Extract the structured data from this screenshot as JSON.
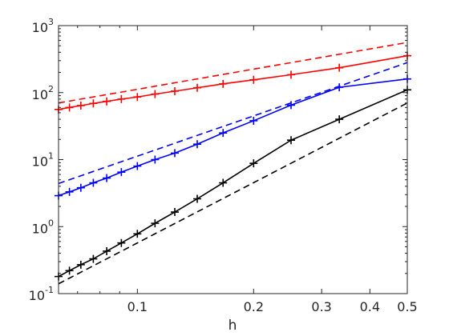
{
  "chart_data": {
    "type": "line",
    "xlabel": "h",
    "ylabel": "",
    "title": "",
    "x_scale": "log",
    "y_scale": "log",
    "xlim": [
      0.0625,
      0.5
    ],
    "ylim": [
      0.1,
      1000
    ],
    "x_ticks": [
      {
        "value": 0.1,
        "label": "0.1"
      },
      {
        "value": 0.2,
        "label": "0.2"
      },
      {
        "value": 0.3,
        "label": "0.3"
      },
      {
        "value": 0.4,
        "label": "0.4"
      },
      {
        "value": 0.5,
        "label": "0.5"
      }
    ],
    "y_ticks": [
      {
        "value": 0.1,
        "base": "10",
        "exp": "-1"
      },
      {
        "value": 1,
        "base": "10",
        "exp": "0"
      },
      {
        "value": 10,
        "base": "10",
        "exp": "1"
      },
      {
        "value": 100,
        "base": "10",
        "exp": "2"
      },
      {
        "value": 1000,
        "base": "10",
        "exp": "3"
      }
    ],
    "grid": false,
    "series": [
      {
        "color": "#ff0000",
        "style": "solid",
        "marker": "+",
        "x": [
          0.5,
          0.3333,
          0.25,
          0.2,
          0.1667,
          0.1429,
          0.125,
          0.1111,
          0.1,
          0.0909,
          0.0833,
          0.0769,
          0.0714,
          0.0667,
          0.0625
        ],
        "y": [
          355,
          235,
          185,
          155,
          135,
          118,
          105,
          95,
          86,
          80,
          74,
          69,
          64,
          60,
          56
        ]
      },
      {
        "color": "#ff0000",
        "style": "dashed",
        "marker": "",
        "x": [
          0.0625,
          0.5
        ],
        "y": [
          70,
          560
        ]
      },
      {
        "color": "#0000ff",
        "style": "solid",
        "marker": "+",
        "x": [
          0.5,
          0.3333,
          0.25,
          0.2,
          0.1667,
          0.1429,
          0.125,
          0.1111,
          0.1,
          0.0909,
          0.0833,
          0.0769,
          0.0714,
          0.0667,
          0.0625
        ],
        "y": [
          160,
          120,
          65,
          38,
          25,
          17,
          12.5,
          10,
          8,
          6.5,
          5.3,
          4.5,
          3.8,
          3.3,
          2.9
        ]
      },
      {
        "color": "#0000ff",
        "style": "dashed",
        "marker": "",
        "x": [
          0.0625,
          0.5
        ],
        "y": [
          4.4,
          280
        ]
      },
      {
        "color": "#000000",
        "style": "solid",
        "marker": "+",
        "x": [
          0.5,
          0.3333,
          0.25,
          0.2,
          0.1667,
          0.1429,
          0.125,
          0.1111,
          0.1,
          0.0909,
          0.0833,
          0.0769,
          0.0714,
          0.0667,
          0.0625
        ],
        "y": [
          110,
          40,
          19.5,
          8.8,
          4.5,
          2.6,
          1.65,
          1.12,
          0.78,
          0.57,
          0.43,
          0.33,
          0.27,
          0.22,
          0.18
        ]
      },
      {
        "color": "#000000",
        "style": "dashed",
        "marker": "",
        "x": [
          0.0625,
          0.5
        ],
        "y": [
          0.14,
          70
        ]
      }
    ]
  }
}
